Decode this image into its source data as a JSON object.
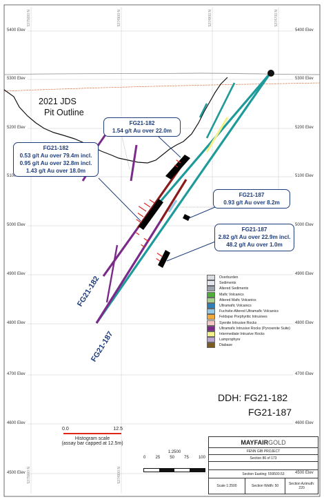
{
  "elevations": {
    "left": [
      "5400 Elev",
      "5300 Elev",
      "5200 Elev",
      "5100 Elev",
      "5000 Elev",
      "4900 Elev",
      "4800 Elev",
      "4700 Elev",
      "4600 Elev",
      "4500 Elev"
    ],
    "right": [
      "5400 Elev",
      "5300 Elev",
      "5200 Elev",
      "5100 Elev",
      "5000 Elev",
      "4900 Elev",
      "4800 Elev",
      "4700 Elev",
      "4600 Elev",
      "4500 Elev"
    ]
  },
  "northings": [
    "5375000 N",
    "5374900 N",
    "5374800 N",
    "5374700 N"
  ],
  "pit_outline": {
    "line1": "2021 JDS",
    "line2": "Pit Outline"
  },
  "callouts": {
    "fg182_upper": {
      "title": "FG21-182",
      "line1": "1.54 g/t Au over 22.0m"
    },
    "fg182_lower": {
      "title": "FG21-182",
      "line1": "0.53 g/t Au over 79.4m incl.",
      "line2": "0.95 g/t Au over 32.8m incl.",
      "line3": "1.43 g/t Au over 18.0m"
    },
    "fg187_upper": {
      "title": "FG21-187",
      "line1": "0.93 g/t Au over 8.2m"
    },
    "fg187_lower": {
      "title": "FG21-187",
      "line1": "2.82 g/t Au over 22.9m incl.",
      "line2": "48.2 g/t Au over 1.0m"
    }
  },
  "hole_labels": {
    "fg182": "FG21-182",
    "fg187": "FG21-187"
  },
  "legend": [
    {
      "label": "Overburden",
      "color": "#d9dde3"
    },
    {
      "label": "Sediments",
      "color": "#e3e7ee"
    },
    {
      "label": "Altered Sediments",
      "color": "#9aa3ad"
    },
    {
      "label": "Mafic Volcanics",
      "color": "#4fae3a"
    },
    {
      "label": "Altered Mafic Volcanics",
      "color": "#a8d08d"
    },
    {
      "label": "Ultramafic Volcanics",
      "color": "#2e7fb8"
    },
    {
      "label": "Fuchsite-Altered Ultramafic Volcanics",
      "color": "#93c9e8"
    },
    {
      "label": "Feldspar Porphyritic Intrusives",
      "color": "#f0a93a"
    },
    {
      "label": "Syenite Intrusive Rocks",
      "color": "#f4c7c3"
    },
    {
      "label": "Ultramafic  Intrusive Rocks (Pyroxenite Suite)",
      "color": "#7b2a8a"
    },
    {
      "label": "Intermediate  Intrusive Rocks",
      "color": "#f6f08a"
    },
    {
      "label": "Lamprophyre",
      "color": "#b9a5cf"
    },
    {
      "label": "Diabase",
      "color": "#7a5a1e"
    }
  ],
  "ddh": {
    "label": "DDH: FG21-182",
    "second": "FG21-187"
  },
  "histogram": {
    "min": "0.0",
    "max": "12.5",
    "caption1": "Histogram scale",
    "caption2": "(assay bar capped at 12.5m)"
  },
  "scale": {
    "ratio": "1:2500",
    "ticks": [
      "0",
      "25",
      "50",
      "75",
      "100"
    ]
  },
  "title_block": {
    "brand_main": "MAYFAIR",
    "brand_sub": "GOLD",
    "project": "FENN GIB PROJECT",
    "section_no": "Section 86 of 173",
    "easting": "Section Easting: 559500.53",
    "scale": "Scale 1:2500",
    "width": "Section Width: 50",
    "azimuth_label": "Section Azimuth:",
    "azimuth": "220"
  },
  "colors": {
    "callout_border": "#1f3d7a",
    "hole_teal": "#1e9a9a",
    "hole_darkred": "#8b1a1a",
    "hole_purple": "#7b2a8a",
    "assay_red": "#e0251b"
  }
}
